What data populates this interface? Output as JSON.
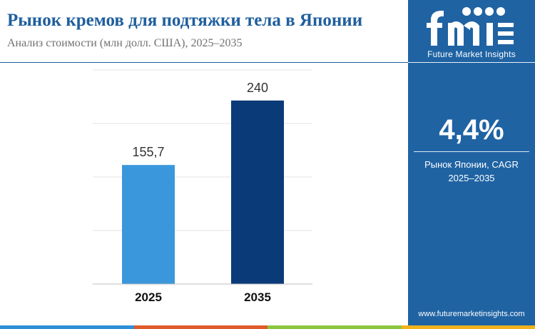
{
  "header": {
    "title": "Рынок кремов для подтяжки тела в Японии",
    "subtitle": "Анализ стоимости (млн долл. США), 2025–2035"
  },
  "sidebar": {
    "logo_icon": "fmi-logo-icon",
    "brand": "Future Market Insights",
    "cagr_value": "4,4%",
    "cagr_label_line1": "Рынок Японии, CAGR",
    "cagr_label_line2": "2025–2035",
    "url": "www.futuremarketinsights.com",
    "background_color": "#1f63a3"
  },
  "footer_colors": [
    "#2f8fd6",
    "#e05a2a",
    "#8cc63f",
    "#f2b21b"
  ],
  "chart_data": {
    "type": "bar",
    "categories": [
      "2025",
      "2035"
    ],
    "values": [
      155.7,
      240
    ],
    "value_labels": [
      "155,7",
      "240"
    ],
    "bar_colors": [
      "#3a97db",
      "#0a3a78"
    ],
    "ylim": [
      0,
      280
    ],
    "grid": true,
    "title": "",
    "xlabel": "",
    "ylabel": ""
  }
}
